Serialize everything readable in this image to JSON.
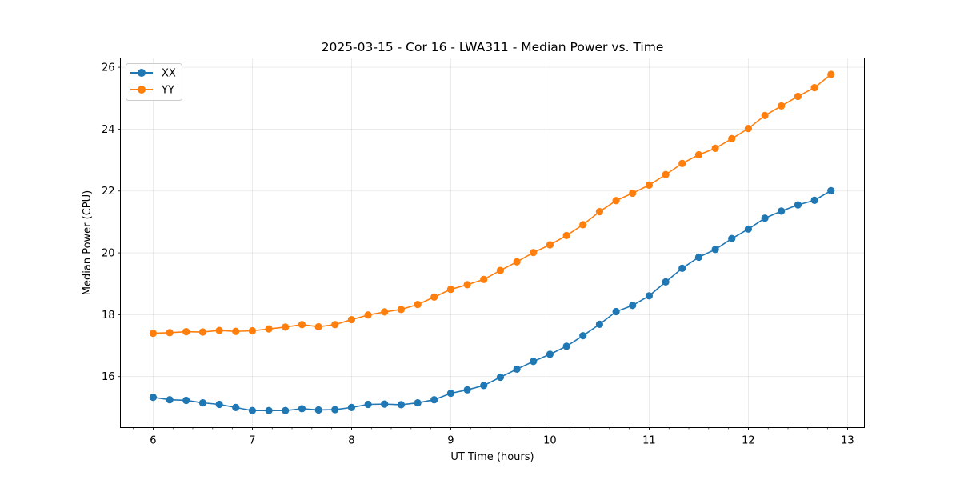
{
  "chart_data": {
    "type": "line",
    "title": "2025-03-15 - Cor 16 - LWA311 - Median Power vs. Time",
    "xlabel": "UT Time (hours)",
    "ylabel": "Median Power (CPU)",
    "xlim": [
      5.67,
      13.17
    ],
    "ylim": [
      14.35,
      26.3
    ],
    "xticks": [
      6,
      7,
      8,
      9,
      10,
      11,
      12,
      13
    ],
    "yticks": [
      16,
      18,
      20,
      22,
      24,
      26
    ],
    "x_minor_step": 0.2,
    "grid": true,
    "legend_position": "top-left",
    "x": [
      6.0,
      6.167,
      6.333,
      6.5,
      6.667,
      6.833,
      7.0,
      7.167,
      7.333,
      7.5,
      7.667,
      7.833,
      8.0,
      8.167,
      8.333,
      8.5,
      8.667,
      8.833,
      9.0,
      9.167,
      9.333,
      9.5,
      9.667,
      9.833,
      10.0,
      10.167,
      10.333,
      10.5,
      10.667,
      10.833,
      11.0,
      11.167,
      11.333,
      11.5,
      11.667,
      11.833,
      12.0,
      12.167,
      12.333,
      12.5,
      12.667,
      12.833
    ],
    "series": [
      {
        "name": "XX",
        "color": "#1f77b4",
        "values": [
          15.33,
          15.25,
          15.23,
          15.15,
          15.1,
          15.0,
          14.9,
          14.9,
          14.9,
          14.96,
          14.92,
          14.93,
          15.0,
          15.1,
          15.11,
          15.09,
          15.15,
          15.25,
          15.46,
          15.57,
          15.71,
          15.98,
          16.24,
          16.49,
          16.72,
          16.98,
          17.32,
          17.69,
          18.1,
          18.3,
          18.61,
          19.06,
          19.5,
          19.86,
          20.11,
          20.46,
          20.77,
          21.12,
          21.35,
          21.55,
          21.7,
          22.01
        ]
      },
      {
        "name": "YY",
        "color": "#ff7f0e",
        "values": [
          17.4,
          17.42,
          17.45,
          17.44,
          17.49,
          17.46,
          17.48,
          17.54,
          17.6,
          17.68,
          17.61,
          17.68,
          17.84,
          17.99,
          18.09,
          18.17,
          18.33,
          18.57,
          18.82,
          18.97,
          19.14,
          19.43,
          19.71,
          20.01,
          20.26,
          20.56,
          20.91,
          21.33,
          21.69,
          21.93,
          22.19,
          22.53,
          22.89,
          23.17,
          23.38,
          23.69,
          24.02,
          24.44,
          24.75,
          25.06,
          25.34,
          25.77
        ]
      }
    ]
  }
}
